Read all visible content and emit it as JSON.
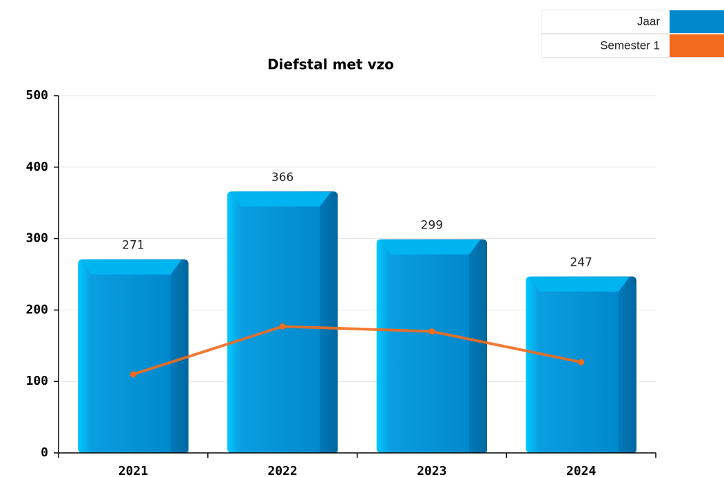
{
  "chart_data": {
    "type": "bar",
    "title": "Diefstal met vzo",
    "categories": [
      "2021",
      "2022",
      "2023",
      "2024"
    ],
    "series": [
      {
        "name": "Jaar",
        "color": "#0088cc",
        "type": "bar",
        "values": [
          271,
          366,
          299,
          247
        ]
      },
      {
        "name": "Semester 1",
        "color": "#f26b1d",
        "type": "line",
        "values": [
          110,
          177,
          170,
          127
        ]
      }
    ],
    "ylim": [
      0,
      500
    ],
    "yticks": [
      0,
      100,
      200,
      300,
      400,
      500
    ],
    "grid": true,
    "legend": "top-right"
  }
}
